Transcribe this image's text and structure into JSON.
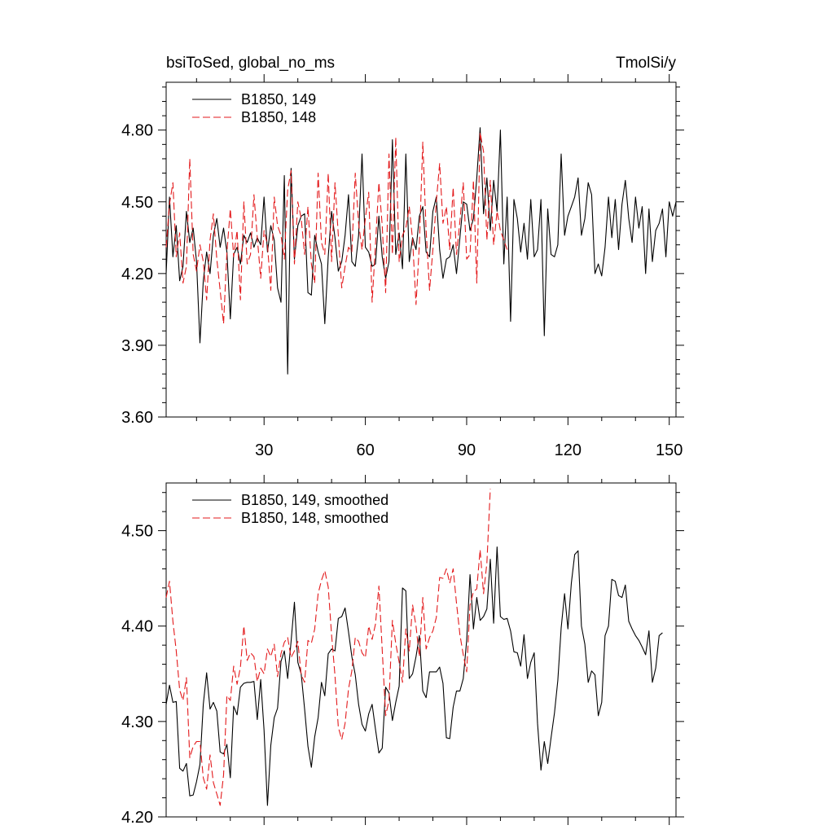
{
  "header": {
    "left": "bsiToSed, global_no_ms",
    "right": "TmolSi/y"
  },
  "colors": {
    "run149": "#000000",
    "run148": "#e31a1c"
  },
  "chart_data": [
    {
      "type": "line",
      "xlim": [
        1,
        152
      ],
      "ylim": [
        3.6,
        5.0
      ],
      "xticks": [
        30,
        60,
        90,
        120,
        150
      ],
      "yticks": [
        3.6,
        3.9,
        4.2,
        4.5,
        4.8
      ],
      "ytick_labels": [
        "3.60",
        "3.90",
        "4.20",
        "4.50",
        "4.80"
      ],
      "xtick_labels": [
        "30",
        "60",
        "90",
        "120",
        "150"
      ],
      "legend_position": "top-left",
      "series": [
        {
          "name": "B1850, 149",
          "style": "solid",
          "values": [
            4.2,
            4.52,
            4.27,
            4.4,
            4.17,
            4.23,
            4.46,
            4.33,
            4.39,
            4.25,
            3.91,
            4.17,
            4.29,
            4.2,
            4.36,
            4.43,
            4.31,
            4.39,
            4.29,
            4.01,
            4.28,
            4.31,
            4.24,
            4.36,
            4.33,
            4.37,
            4.31,
            4.35,
            4.32,
            4.52,
            4.29,
            4.4,
            4.34,
            4.14,
            4.08,
            4.61,
            3.78,
            4.64,
            4.26,
            4.4,
            4.44,
            4.45,
            4.12,
            4.11,
            4.36,
            4.29,
            4.24,
            3.99,
            4.27,
            4.46,
            4.35,
            4.21,
            4.25,
            4.36,
            4.53,
            4.25,
            4.23,
            4.36,
            4.7,
            4.31,
            4.29,
            4.23,
            4.24,
            4.44,
            4.27,
            4.18,
            4.25,
            4.76,
            4.28,
            4.37,
            4.22,
            4.7,
            4.25,
            4.35,
            4.3,
            4.44,
            4.48,
            4.29,
            4.27,
            4.46,
            4.52,
            4.3,
            4.18,
            4.26,
            4.27,
            4.32,
            4.2,
            4.35,
            4.5,
            4.49,
            4.38,
            4.43,
            4.6,
            4.81,
            4.45,
            4.6,
            4.38,
            4.59,
            4.46,
            4.8,
            4.24,
            4.52,
            4.0,
            4.51,
            4.43,
            4.29,
            4.41,
            4.26,
            4.51,
            4.27,
            4.3,
            4.51,
            3.94,
            4.47,
            4.28,
            4.27,
            4.32,
            4.7,
            4.36,
            4.44,
            4.48,
            4.52,
            4.6,
            4.36,
            4.43,
            4.58,
            4.53,
            4.2,
            4.24,
            4.19,
            4.31,
            4.52,
            4.35,
            4.51,
            4.3,
            4.49,
            4.59,
            4.43,
            4.33,
            4.52,
            4.39,
            4.48,
            4.2,
            4.47,
            4.25,
            4.38,
            4.41,
            4.47,
            4.27,
            4.5,
            4.44,
            4.5
          ]
        },
        {
          "name": "B1850, 148",
          "style": "dashed",
          "values": [
            4.31,
            4.49,
            4.58,
            4.27,
            4.37,
            4.16,
            4.23,
            4.68,
            4.28,
            4.21,
            4.32,
            4.25,
            4.09,
            4.34,
            4.45,
            4.26,
            4.13,
            3.99,
            4.29,
            4.47,
            4.27,
            4.38,
            4.09,
            4.5,
            4.24,
            4.28,
            4.53,
            4.35,
            4.18,
            4.38,
            4.32,
            4.13,
            4.52,
            4.4,
            4.36,
            4.26,
            4.55,
            4.63,
            4.24,
            4.5,
            4.43,
            4.28,
            4.48,
            4.24,
            4.16,
            4.62,
            4.33,
            4.28,
            4.62,
            4.25,
            4.58,
            4.36,
            4.14,
            4.23,
            4.31,
            4.29,
            4.62,
            4.41,
            4.3,
            4.43,
            4.54,
            4.08,
            4.32,
            4.58,
            4.4,
            4.12,
            4.7,
            4.28,
            4.77,
            4.25,
            4.36,
            4.39,
            4.48,
            4.34,
            4.07,
            4.32,
            4.75,
            4.38,
            4.13,
            4.3,
            4.5,
            4.66,
            4.41,
            4.48,
            4.3,
            4.56,
            4.28,
            4.42,
            4.58,
            4.26,
            4.28,
            4.59,
            4.16,
            4.79,
            4.71,
            4.34,
            4.59,
            4.32,
            4.46,
            4.38,
            4.34,
            4.3
          ]
        }
      ]
    },
    {
      "type": "line",
      "xlim": [
        1,
        152
      ],
      "ylim": [
        4.2,
        4.55
      ],
      "xticks": [
        30,
        60,
        90,
        120,
        150
      ],
      "yticks": [
        4.2,
        4.3,
        4.4,
        4.5
      ],
      "ytick_labels": [
        "4.20",
        "4.30",
        "4.40",
        "4.50"
      ],
      "legend_position": "top-left",
      "series": [
        {
          "name": "B1850, 149, smoothed",
          "style": "solid",
          "values": [
            4.318,
            4.338,
            4.32,
            4.321,
            4.251,
            4.248,
            4.256,
            4.222,
            4.223,
            4.237,
            4.255,
            4.318,
            4.351,
            4.313,
            4.32,
            4.311,
            4.268,
            4.266,
            4.276,
            4.241,
            4.316,
            4.307,
            4.336,
            4.34,
            4.341,
            4.341,
            4.342,
            4.302,
            4.344,
            4.291,
            4.212,
            4.275,
            4.304,
            4.314,
            4.363,
            4.374,
            4.345,
            4.384,
            4.425,
            4.362,
            4.35,
            4.313,
            4.274,
            4.252,
            4.284,
            4.304,
            4.341,
            4.327,
            4.371,
            4.376,
            4.374,
            4.408,
            4.41,
            4.419,
            4.394,
            4.368,
            4.349,
            4.318,
            4.297,
            4.29,
            4.308,
            4.318,
            4.292,
            4.267,
            4.272,
            4.336,
            4.33,
            4.301,
            4.32,
            4.337,
            4.44,
            4.437,
            4.345,
            4.35,
            4.368,
            4.39,
            4.332,
            4.325,
            4.352,
            4.352,
            4.352,
            4.357,
            4.34,
            4.283,
            4.282,
            4.315,
            4.332,
            4.332,
            4.345,
            4.385,
            4.454,
            4.397,
            4.43,
            4.406,
            4.41,
            4.418,
            4.47,
            4.403,
            4.483,
            4.41,
            4.407,
            4.408,
            4.395,
            4.373,
            4.372,
            4.358,
            4.391,
            4.345,
            4.362,
            4.372,
            4.298,
            4.249,
            4.279,
            4.256,
            4.283,
            4.309,
            4.343,
            4.398,
            4.434,
            4.397,
            4.445,
            4.475,
            4.479,
            4.4,
            4.381,
            4.341,
            4.353,
            4.349,
            4.306,
            4.32,
            4.39,
            4.4,
            4.449,
            4.447,
            4.432,
            4.43,
            4.443,
            4.405,
            4.397,
            4.39,
            4.385,
            4.378,
            4.37,
            4.395,
            4.341,
            4.356,
            4.39,
            4.393
          ]
        },
        {
          "name": "B1850, 148, smoothed",
          "style": "dashed",
          "values": [
            4.43,
            4.447,
            4.405,
            4.374,
            4.333,
            4.322,
            4.346,
            4.262,
            4.274,
            4.279,
            4.279,
            4.241,
            4.229,
            4.265,
            4.236,
            4.224,
            4.212,
            4.244,
            4.327,
            4.322,
            4.358,
            4.339,
            4.357,
            4.4,
            4.364,
            4.372,
            4.368,
            4.342,
            4.356,
            4.35,
            4.376,
            4.368,
            4.381,
            4.347,
            4.371,
            4.383,
            4.388,
            4.367,
            4.374,
            4.384,
            4.349,
            4.341,
            4.385,
            4.382,
            4.397,
            4.434,
            4.448,
            4.458,
            4.441,
            4.391,
            4.348,
            4.294,
            4.281,
            4.298,
            4.334,
            4.353,
            4.388,
            4.384,
            4.372,
            4.367,
            4.4,
            4.386,
            4.402,
            4.442,
            4.375,
            4.306,
            4.322,
            4.406,
            4.382,
            4.362,
            4.341,
            4.397,
            4.374,
            4.422,
            4.4,
            4.368,
            4.43,
            4.376,
            4.388,
            4.395,
            4.409,
            4.451,
            4.45,
            4.46,
            4.445,
            4.46,
            4.424,
            4.391,
            4.37,
            4.352,
            4.422,
            4.436,
            4.439,
            4.48,
            4.434,
            4.466,
            4.544
          ]
        }
      ]
    }
  ]
}
